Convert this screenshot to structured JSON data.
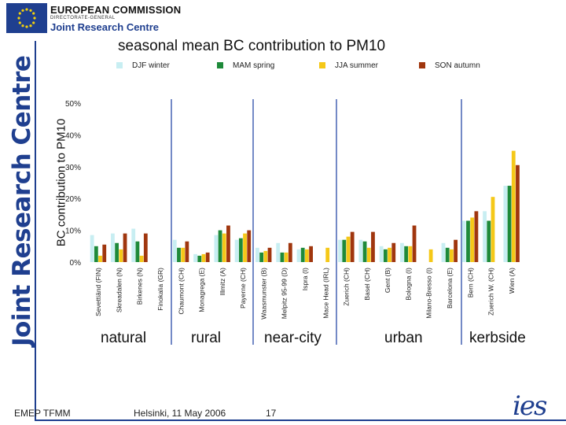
{
  "header": {
    "org_name": "EUROPEAN COMMISSION",
    "org_dg": "DIRECTORATE-GENERAL",
    "org_centre": "Joint Research Centre",
    "side_text": "Joint Research Centre"
  },
  "footer": {
    "left": "EMEP TFMM",
    "center": "Helsinki, 11 May 2006",
    "page": "17",
    "logo": "ies"
  },
  "colors": {
    "brand": "#1f3f8f",
    "separator": "#2a4aa8"
  },
  "chart_data": {
    "type": "bar",
    "title": "seasonal mean BC contribution to PM10",
    "ylabel": "BC contribution to PM10",
    "xlabel": "",
    "ylim": [
      0,
      50
    ],
    "yticks": [
      "0%",
      "10%",
      "20%",
      "30%",
      "40%",
      "50%"
    ],
    "grid": false,
    "legend_position": "top",
    "series": [
      {
        "name": "DJF winter",
        "color": "#c8eef2",
        "values": [
          8.5,
          9,
          10.5,
          null,
          7,
          2.5,
          8.5,
          7,
          4.5,
          6,
          4,
          0,
          7,
          7,
          5,
          6,
          0,
          6,
          13,
          16,
          24
        ]
      },
      {
        "name": "MAM spring",
        "color": "#1e8a3a",
        "values": [
          5,
          6,
          6.5,
          null,
          4.5,
          2,
          10,
          7.5,
          3,
          3,
          4.5,
          0,
          7,
          6.5,
          4,
          5,
          0,
          4.5,
          13,
          13,
          24
        ]
      },
      {
        "name": "JJA summer",
        "color": "#f5c818",
        "values": [
          2,
          4,
          2,
          null,
          4.5,
          2.5,
          9,
          9,
          3.5,
          3,
          4,
          4.5,
          8,
          4.5,
          4.5,
          5,
          4,
          4,
          14,
          20.5,
          35
        ]
      },
      {
        "name": "SON autumn",
        "color": "#a0360e",
        "values": [
          5.5,
          9,
          9,
          null,
          6.5,
          3,
          11.5,
          10,
          4.5,
          6,
          5,
          0,
          9.5,
          9.5,
          6,
          11.5,
          0,
          7,
          16,
          0,
          30.5
        ]
      }
    ],
    "categories": [
      "Sevettiänd (FIN)",
      "Skreadalen (N)",
      "Birkenes (N)",
      "Finokalia (GR)",
      "Chaumont (CH)",
      "Monagrega (E)",
      "Illmitz (A)",
      "Payerne (CH)",
      "Waasmunster (B)",
      "Melpitz 95-99 (D)",
      "Ispra (I)",
      "Mace Head (IRL)",
      "Zuerich (CH)",
      "Basel (CH)",
      "Gent (B)",
      "Bologna (I)",
      "Milano-Bresso (I)",
      "Barcelona (E)",
      "Bern (CH)",
      "Zuerich W. (CH)",
      "Wien (A)"
    ],
    "groups": [
      "natural",
      "rural",
      "near-city",
      "urban",
      "kerbside"
    ]
  }
}
